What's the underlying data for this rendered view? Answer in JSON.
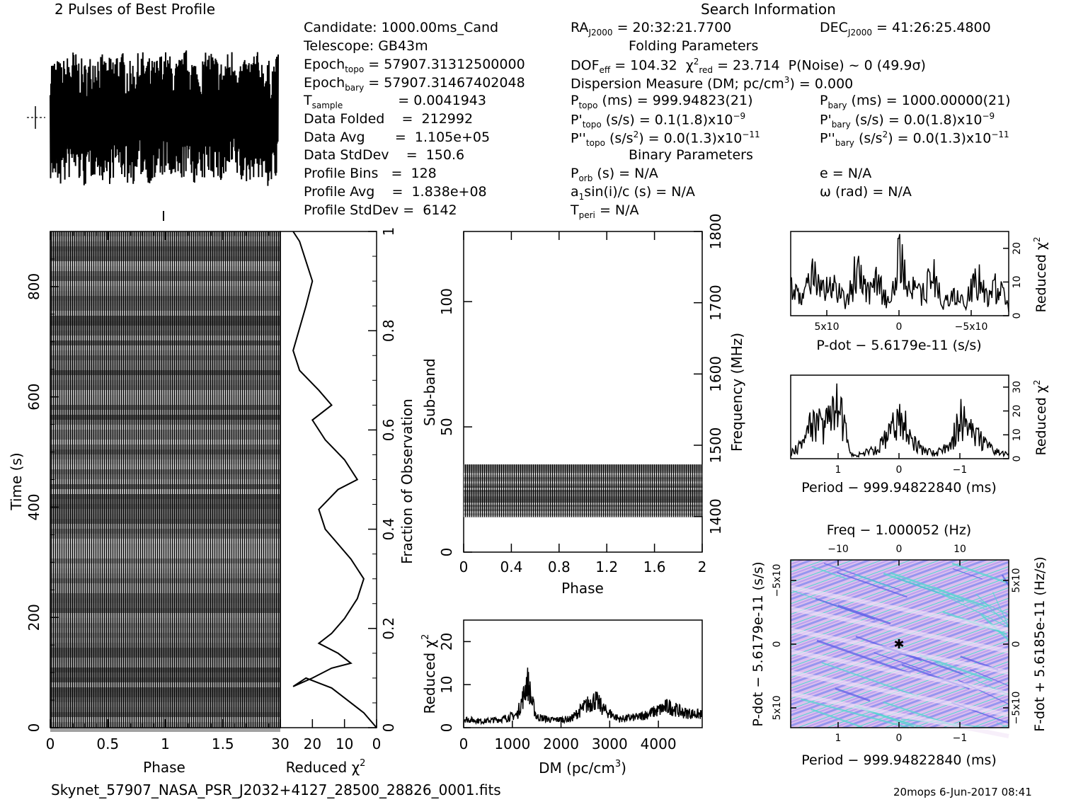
{
  "titles": {
    "profile": "2 Pulses of Best Profile",
    "search": "Search Information",
    "folding": "Folding Parameters",
    "binary": "Binary Parameters"
  },
  "info_left": {
    "candidate": "Candidate:  1000.00ms_Cand",
    "telescope": "Telescope:  GB43m",
    "epoch_topo": "= 57907.31312500000",
    "epoch_bary": "= 57907.31467402048",
    "t_sample": "=  0.0041943",
    "data_folded": "Data Folded    =  212992",
    "data_avg": "Data Avg       =  1.105e+05",
    "data_stddev": "Data StdDev    =  150.6",
    "profile_bins": "Profile Bins   =  128",
    "profile_avg": "Profile Avg    =  1.838e+08",
    "profile_stddev": "Profile StdDev =  6142"
  },
  "info_mid": {
    "ra": "= 20:32:21.7700",
    "dof": "= 104.32",
    "chi2red": "= 23.714",
    "pnoise": "P(Noise) ~ 0   (49.9σ)",
    "dm": "Dispersion Measure (DM; pc/cm",
    "dm_val": ") = 0.000",
    "ptopo": "(ms) =  999.94823(21)",
    "pdtopo": "(s/s) =  0.1(1.8)x10",
    "pddtopo": "(s/s",
    "pddtopo_val": ") = 0.0(1.3)x10",
    "porb": "(s) = N/A",
    "a1": "sin(i)/c (s) = N/A",
    "tperi": "= N/A"
  },
  "info_right": {
    "dec": "= 41:26:25.4800",
    "pbary": "(ms) =  1000.00000(21)",
    "pdbary": "(s/s) = 0.0(1.8)x10",
    "pddbary": "(s/s",
    "pddbary_val": ") = 0.0(1.3)x10",
    "e": "e = N/A",
    "omega": "ω (rad) = N/A"
  },
  "footer": {
    "filename": "Skynet_57907_NASA_PSR_J2032+4127_28500_28826_0001.fits",
    "stamp": "20mops  6-Jun-2017 08:41"
  },
  "colors": {
    "ink": "#000000",
    "plane_bg": "#e8c8f0",
    "plane_mid": "#9a9af2",
    "plane_hi": "#4fd8d0"
  },
  "chart_data": [
    {
      "type": "line",
      "name": "profile",
      "x": [
        0,
        0.1,
        0.2,
        0.3,
        0.4,
        0.5,
        0.6,
        0.7,
        0.8,
        0.9,
        1.0,
        1.1,
        1.2,
        1.3,
        1.4,
        1.5,
        1.6,
        1.7,
        1.8,
        1.9,
        2.0
      ],
      "y": [
        0.0,
        0.8,
        -0.6,
        0.9,
        -0.8,
        0.7,
        -0.9,
        0.8,
        -0.5,
        0.7,
        -0.6,
        0.8,
        -0.7,
        0.9,
        -0.8,
        0.6,
        -0.9,
        0.8,
        -0.6,
        0.9,
        0.0
      ],
      "note_style": "noisy"
    },
    {
      "type": "heatmap",
      "name": "time-phase",
      "xlabel": "Phase",
      "ylabel": "Time (s)",
      "xlim": [
        0,
        2
      ],
      "ylim": [
        0,
        900
      ],
      "xticks": [
        "0",
        "0.5",
        "1",
        "1.5"
      ],
      "yticks": [
        "0",
        "200",
        "400",
        "600",
        "800"
      ]
    },
    {
      "type": "line",
      "name": "reduced-chi2-vs-fraction",
      "xlabel": "Reduced χ",
      "ylabel": "Fraction of Observation",
      "xlim": [
        30,
        0
      ],
      "ylim": [
        0,
        1
      ],
      "xticks": [
        "30",
        "20",
        "10",
        "0"
      ],
      "yticks": [
        "0",
        "0.2",
        "0.4",
        "0.6",
        "0.8",
        "1"
      ],
      "x": [
        0,
        4,
        10,
        14,
        18,
        22,
        26,
        20,
        14,
        8,
        12,
        18,
        14,
        10,
        6,
        4,
        8,
        12,
        16,
        18,
        12,
        6,
        10,
        16,
        20,
        14,
        18,
        24,
        26,
        22,
        20,
        24
      ],
      "y": [
        0,
        0.03,
        0.06,
        0.08,
        0.09,
        0.1,
        0.083,
        0.1,
        0.12,
        0.13,
        0.15,
        0.17,
        0.19,
        0.22,
        0.26,
        0.3,
        0.34,
        0.37,
        0.4,
        0.44,
        0.48,
        0.5,
        0.54,
        0.58,
        0.62,
        0.65,
        0.68,
        0.72,
        0.76,
        0.85,
        0.9,
        0.98
      ]
    },
    {
      "type": "heatmap",
      "name": "subband-phase",
      "xlabel": "Phase",
      "ylabel": "Sub-band",
      "y2label": "Frequency (MHz)",
      "xlim": [
        0,
        2
      ],
      "ylim": [
        0,
        128
      ],
      "y2lim": [
        1350,
        1800
      ],
      "xticks": [
        "0",
        "0.4",
        "0.8",
        "1.2",
        "1.6",
        "2"
      ],
      "yticks": [
        "0",
        "50",
        "100"
      ],
      "y2ticks": [
        "1400",
        "1500",
        "1600",
        "1700",
        "1800"
      ],
      "band_range": [
        14,
        35
      ]
    },
    {
      "type": "line",
      "name": "dm-curve",
      "xlabel": "DM (pc/cm",
      "ylabel": "Reduced χ",
      "xlim": [
        0,
        4900
      ],
      "ylim": [
        0,
        25
      ],
      "xticks": [
        "0",
        "1000",
        "2000",
        "3000",
        "4000"
      ],
      "yticks": [
        "0",
        "10",
        "20"
      ],
      "x": [
        0,
        400,
        800,
        1100,
        1250,
        1300,
        1350,
        1400,
        1500,
        1800,
        2200,
        2500,
        2700,
        2900,
        3200,
        3600,
        4000,
        4200,
        4500,
        4900
      ],
      "y": [
        2,
        1.5,
        2,
        3,
        8,
        11,
        9,
        6,
        2.5,
        1.8,
        2,
        5,
        6.5,
        4,
        2,
        2.5,
        4,
        5,
        3.5,
        3
      ]
    },
    {
      "type": "line",
      "name": "pdot-curve",
      "xlabel": "P-dot − 5.6179e-11 (s/s)",
      "ylabel": "Reduced χ",
      "ylim": [
        0,
        25
      ],
      "xticks": [
        "5x10",
        "0",
        "−5x10"
      ],
      "yticks": [
        "0",
        "10",
        "20"
      ],
      "x": [
        -1,
        -0.9,
        -0.8,
        -0.7,
        -0.6,
        -0.5,
        -0.4,
        -0.3,
        -0.2,
        -0.1,
        0,
        0.1,
        0.2,
        0.3,
        0.4,
        0.5,
        0.6,
        0.7,
        0.8,
        0.9,
        1
      ],
      "y": [
        3,
        12,
        6,
        16,
        5,
        10,
        4,
        18,
        7,
        12,
        22,
        5,
        14,
        8,
        17,
        6,
        12,
        9,
        15,
        7,
        11
      ]
    },
    {
      "type": "line",
      "name": "period-curve",
      "xlabel": "Period − 999.94822840 (ms)",
      "ylabel": "Reduced χ",
      "ylim": [
        0,
        35
      ],
      "xticks": [
        "1",
        "0",
        "−1"
      ],
      "yticks": [
        "0",
        "10",
        "20",
        "30"
      ],
      "x": [
        -1.8,
        -1.6,
        -1.4,
        -1.2,
        -1.0,
        -0.8,
        -0.6,
        -0.4,
        -0.2,
        0,
        0.2,
        0.4,
        0.6,
        0.8,
        1.0,
        1.2,
        1.4,
        1.6,
        1.8
      ],
      "y": [
        2,
        4,
        8,
        14,
        22,
        6,
        3,
        4,
        10,
        24,
        12,
        5,
        3,
        2,
        30,
        18,
        22,
        8,
        3
      ]
    },
    {
      "type": "heatmap",
      "name": "period-pdot-plane",
      "title": "Freq − 1.000052 (Hz)",
      "xlabel": "Period − 999.94822840 (ms)",
      "ylabel": "P-dot − 5.6179e-11 (s/s)",
      "y2label": "F-dot + 5.6185e-11 (Hz/s)",
      "xticks": [
        "1",
        "0",
        "−1"
      ],
      "x2ticks": [
        "−10",
        "0",
        "10"
      ],
      "yticks": [
        "5x10",
        "0",
        "−5x10"
      ],
      "y2ticks": [
        "−5x10",
        "0",
        "5x10"
      ]
    }
  ]
}
